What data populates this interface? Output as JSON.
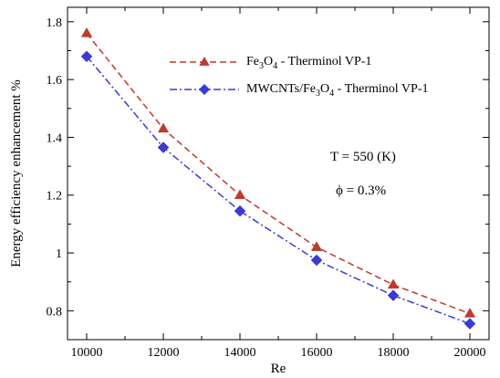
{
  "chart_data": {
    "type": "line",
    "xlabel": "Re",
    "ylabel": "Energy efficiency enhancement %",
    "xlim": [
      9500,
      20500
    ],
    "ylim": [
      0.7,
      1.85
    ],
    "xticks": [
      10000,
      12000,
      14000,
      16000,
      18000,
      20000
    ],
    "yticks": [
      0.8,
      1,
      1.2,
      1.4,
      1.6,
      1.8
    ],
    "ytick_labels": [
      "0.8",
      "1",
      "1.2",
      "1.4",
      "1.6",
      "1.8"
    ],
    "grid": false,
    "legend_position": "top-right",
    "x": [
      10000,
      12000,
      14000,
      16000,
      18000,
      20000
    ],
    "series": [
      {
        "name_main": "Fe",
        "name_sub1": "3",
        "name_mid": "O",
        "name_sub2": "4",
        "name_rest": " - Therminol VP-1",
        "values": [
          1.76,
          1.43,
          1.2,
          1.02,
          0.89,
          0.79
        ],
        "color": "#c0392b",
        "marker": "triangle",
        "line": "dashed"
      },
      {
        "name_main": "MWCNTs/Fe",
        "name_sub1": "3",
        "name_mid": "O",
        "name_sub2": "4",
        "name_rest": " - Therminol VP-1",
        "values": [
          1.68,
          1.365,
          1.145,
          0.975,
          0.853,
          0.755
        ],
        "color": "#3a3ad8",
        "marker": "diamond",
        "line": "dashdot"
      }
    ],
    "annotations": [
      "T = 550 (K)",
      "ϕ = 0.3%"
    ]
  }
}
